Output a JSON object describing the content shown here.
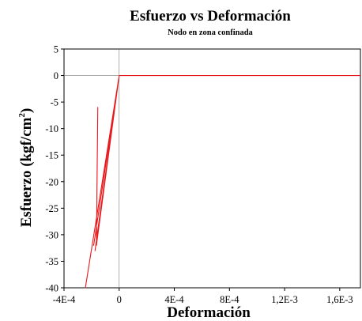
{
  "chart_data": {
    "type": "line",
    "title": "Esfuerzo vs Deformación",
    "subtitle": "Nodo en zona confinada",
    "xlabel": "Deformación",
    "ylabel_main": "Esfuerzo (kgf/cm",
    "ylabel_sup": "2",
    "ylabel_close": ")",
    "xlim": [
      -0.0004,
      0.00175
    ],
    "ylim": [
      -40,
      5
    ],
    "x_ticks": [
      {
        "value": -0.0004,
        "label": "-4E-4"
      },
      {
        "value": 0,
        "label": "0"
      },
      {
        "value": 0.0004,
        "label": "4E-4"
      },
      {
        "value": 0.0008,
        "label": "8E-4"
      },
      {
        "value": 0.0012,
        "label": "1,2E-3"
      },
      {
        "value": 0.0016,
        "label": "1,6E-3"
      }
    ],
    "y_ticks": [
      {
        "value": 5,
        "label": "5"
      },
      {
        "value": 0,
        "label": "0"
      },
      {
        "value": -5,
        "label": "-5"
      },
      {
        "value": -10,
        "label": "-10"
      },
      {
        "value": -15,
        "label": "-15"
      },
      {
        "value": -20,
        "label": "-20"
      },
      {
        "value": -25,
        "label": "-25"
      },
      {
        "value": -30,
        "label": "-30"
      },
      {
        "value": -35,
        "label": "-35"
      },
      {
        "value": -40,
        "label": "-40"
      }
    ],
    "grid": false,
    "series": [
      {
        "color": "#e8191c",
        "x": [
          0.00175,
          0,
          -0.000185,
          0,
          -0.000175,
          0,
          -0.000165,
          -0.000155,
          -0.000165,
          0,
          -0.000245,
          0
        ],
        "y": [
          0,
          0,
          -32,
          0,
          -33,
          0,
          -31,
          -6,
          -32,
          0,
          -40,
          0
        ]
      }
    ],
    "colors": {
      "series": "#e8191c",
      "axis": "#7a7a7a",
      "frame": "#000000"
    }
  }
}
